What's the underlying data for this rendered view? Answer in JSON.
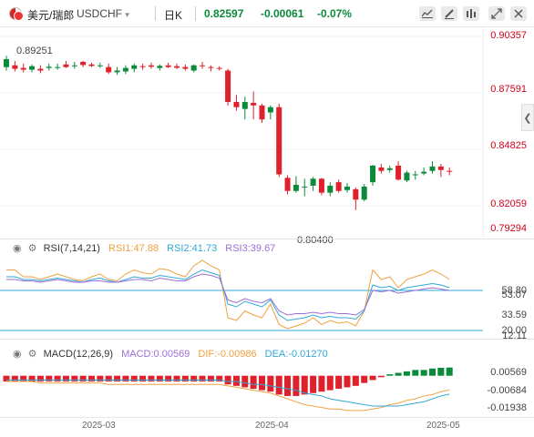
{
  "header": {
    "pair_name": "美元/瑞郎",
    "symbol": "USDCHF",
    "dropdown_arrow": "▾",
    "period": "日K",
    "price": "0.82597",
    "change": "-0.00061",
    "change_pct": "-0.07%",
    "icons": [
      "indicator-icon",
      "draw-icon",
      "settings-icon",
      "expand-icon",
      "close-icon"
    ]
  },
  "price_axis": [
    "0.90357",
    "0.87591",
    "0.84825",
    "0.82059",
    "0.79294"
  ],
  "high_label": "0.89251",
  "low_label": "0.80400",
  "rsi": {
    "title": "RSI(7,14,21)",
    "rsi1": "RSI1:47.88",
    "rsi2": "RSI2:41.73",
    "rsi3": "RSI3:39.67",
    "axis": [
      "58.80",
      "53.07",
      "33.59",
      "20.00",
      "12.11"
    ],
    "colors": {
      "rsi1": "#f0a040",
      "rsi2": "#30a8d8",
      "rsi3": "#9b6fd6",
      "band": "#30a8d8"
    }
  },
  "macd": {
    "title": "MACD(12,26,9)",
    "macd": "MACD:0.00569",
    "dif": "DIF:-0.00986",
    "dea": "DEA:-0.01270",
    "axis": [
      "0.00569",
      "-0.00684",
      "-0.01938"
    ],
    "colors": {
      "macd": "#9b6fd6",
      "dif": "#f0a040",
      "dea": "#30a8d8"
    }
  },
  "x_axis": [
    "2025-03",
    "2025-04",
    "2025-05"
  ],
  "colors": {
    "up": "#0b8a3a",
    "down": "#e0202a",
    "text_red": "#d0021b"
  },
  "chart_data": {
    "type": "candlestick",
    "candles": [
      [
        0.886,
        0.8925,
        0.884,
        0.8905
      ],
      [
        0.887,
        0.8895,
        0.8835,
        0.885
      ],
      [
        0.8855,
        0.888,
        0.883,
        0.8845
      ],
      [
        0.8845,
        0.8875,
        0.883,
        0.8865
      ],
      [
        0.885,
        0.887,
        0.8825,
        0.884
      ],
      [
        0.8855,
        0.888,
        0.884,
        0.8862
      ],
      [
        0.886,
        0.888,
        0.8845,
        0.886
      ],
      [
        0.8875,
        0.8895,
        0.8855,
        0.886
      ],
      [
        0.887,
        0.889,
        0.885,
        0.887
      ],
      [
        0.889,
        0.8895,
        0.886,
        0.8872
      ],
      [
        0.8875,
        0.8885,
        0.886,
        0.8866
      ],
      [
        0.887,
        0.8885,
        0.8855,
        0.887
      ],
      [
        0.886,
        0.888,
        0.882,
        0.883
      ],
      [
        0.883,
        0.886,
        0.8815,
        0.884
      ],
      [
        0.8835,
        0.887,
        0.882,
        0.8855
      ],
      [
        0.885,
        0.888,
        0.883,
        0.887
      ],
      [
        0.8865,
        0.888,
        0.8845,
        0.886
      ],
      [
        0.887,
        0.8885,
        0.885,
        0.8862
      ],
      [
        0.8855,
        0.8875,
        0.884,
        0.8867
      ],
      [
        0.887,
        0.8885,
        0.8855,
        0.886
      ],
      [
        0.8865,
        0.888,
        0.885,
        0.8856
      ],
      [
        0.886,
        0.8875,
        0.884,
        0.885
      ],
      [
        0.884,
        0.8875,
        0.883,
        0.887
      ],
      [
        0.887,
        0.889,
        0.885,
        0.8865
      ],
      [
        0.886,
        0.887,
        0.8835,
        0.8855
      ],
      [
        0.8855,
        0.8865,
        0.884,
        0.885
      ],
      [
        0.884,
        0.885,
        0.864,
        0.866
      ],
      [
        0.866,
        0.87,
        0.861,
        0.863
      ],
      [
        0.862,
        0.869,
        0.856,
        0.866
      ],
      [
        0.8655,
        0.872,
        0.856,
        0.864
      ],
      [
        0.864,
        0.865,
        0.854,
        0.856
      ],
      [
        0.86,
        0.864,
        0.856,
        0.863
      ],
      [
        0.863,
        0.865,
        0.823,
        0.8245
      ],
      [
        0.8225,
        0.824,
        0.813,
        0.815
      ],
      [
        0.815,
        0.8235,
        0.814,
        0.8185
      ],
      [
        0.817,
        0.822,
        0.812,
        0.8175
      ],
      [
        0.818,
        0.823,
        0.815,
        0.822
      ],
      [
        0.822,
        0.8225,
        0.8125,
        0.814
      ],
      [
        0.814,
        0.82,
        0.812,
        0.818
      ],
      [
        0.82,
        0.8215,
        0.814,
        0.815
      ],
      [
        0.8155,
        0.8195,
        0.814,
        0.8175
      ],
      [
        0.816,
        0.817,
        0.804,
        0.81
      ],
      [
        0.81,
        0.819,
        0.809,
        0.8175
      ],
      [
        0.82,
        0.83,
        0.818,
        0.8295
      ],
      [
        0.8285,
        0.8305,
        0.825,
        0.8265
      ],
      [
        0.827,
        0.8295,
        0.8255,
        0.828
      ],
      [
        0.8295,
        0.832,
        0.821,
        0.8215
      ],
      [
        0.821,
        0.8265,
        0.82,
        0.8255
      ],
      [
        0.824,
        0.8265,
        0.8215,
        0.8245
      ],
      [
        0.825,
        0.8285,
        0.824,
        0.826
      ],
      [
        0.8265,
        0.832,
        0.825,
        0.829
      ],
      [
        0.829,
        0.8305,
        0.823,
        0.827
      ],
      [
        0.8265,
        0.8285,
        0.824,
        0.826
      ]
    ],
    "price_range": [
      0.79294,
      0.90357
    ],
    "rsi_series": {
      "rsi1": [
        55,
        55,
        50,
        50,
        48,
        50,
        52,
        50,
        48,
        47,
        50,
        52,
        48,
        47,
        52,
        55,
        53,
        52,
        56,
        55,
        52,
        50,
        58,
        62,
        58,
        55,
        20,
        18,
        25,
        22,
        20,
        30,
        15,
        12,
        14,
        16,
        20,
        15,
        18,
        16,
        17,
        14,
        25,
        55,
        48,
        50,
        42,
        48,
        50,
        52,
        55,
        52,
        48
      ],
      "rsi2": [
        50,
        50,
        48,
        48,
        47,
        48,
        49,
        48,
        47,
        46,
        48,
        49,
        47,
        46,
        48,
        50,
        49,
        49,
        51,
        50,
        49,
        48,
        52,
        55,
        53,
        51,
        30,
        28,
        32,
        30,
        28,
        33,
        22,
        18,
        19,
        20,
        22,
        20,
        21,
        20,
        20,
        19,
        25,
        44,
        42,
        43,
        40,
        42,
        43,
        44,
        45,
        44,
        42
      ],
      "rsi3": [
        48,
        48,
        47,
        47,
        46,
        47,
        48,
        47,
        46,
        46,
        47,
        47,
        46,
        46,
        47,
        48,
        48,
        47,
        49,
        48,
        47,
        47,
        50,
        52,
        51,
        49,
        33,
        31,
        34,
        32,
        31,
        34,
        25,
        22,
        23,
        23,
        24,
        23,
        24,
        23,
        23,
        22,
        26,
        40,
        39,
        40,
        38,
        39,
        40,
        41,
        42,
        41,
        40
      ]
    },
    "rsi_range": [
      10,
      62
    ],
    "macd_series": {
      "hist": [
        -0.004,
        -0.004,
        -0.004,
        -0.004,
        -0.004,
        -0.004,
        -0.004,
        -0.004,
        -0.004,
        -0.004,
        -0.004,
        -0.004,
        -0.004,
        -0.004,
        -0.004,
        -0.004,
        -0.004,
        -0.004,
        -0.004,
        -0.004,
        -0.004,
        -0.004,
        -0.004,
        -0.004,
        -0.004,
        -0.004,
        -0.006,
        -0.007,
        -0.008,
        -0.009,
        -0.01,
        -0.011,
        -0.013,
        -0.014,
        -0.014,
        -0.013,
        -0.012,
        -0.011,
        -0.01,
        -0.009,
        -0.008,
        -0.007,
        -0.005,
        -0.003,
        -0.001,
        0.001,
        0.002,
        0.003,
        0.004,
        0.004,
        0.005,
        0.0055,
        0.00569
      ],
      "dif": [
        -0.004,
        -0.004,
        -0.004,
        -0.004,
        -0.005,
        -0.005,
        -0.005,
        -0.005,
        -0.005,
        -0.005,
        -0.005,
        -0.005,
        -0.006,
        -0.006,
        -0.006,
        -0.006,
        -0.006,
        -0.006,
        -0.006,
        -0.006,
        -0.006,
        -0.006,
        -0.006,
        -0.006,
        -0.006,
        -0.006,
        -0.007,
        -0.008,
        -0.009,
        -0.01,
        -0.011,
        -0.012,
        -0.014,
        -0.016,
        -0.018,
        -0.02,
        -0.021,
        -0.022,
        -0.023,
        -0.023,
        -0.024,
        -0.024,
        -0.024,
        -0.023,
        -0.022,
        -0.02,
        -0.019,
        -0.017,
        -0.016,
        -0.014,
        -0.013,
        -0.011,
        -0.00986
      ],
      "dea": [
        -0.003,
        -0.003,
        -0.003,
        -0.003,
        -0.003,
        -0.003,
        -0.003,
        -0.003,
        -0.003,
        -0.003,
        -0.003,
        -0.003,
        -0.003,
        -0.003,
        -0.003,
        -0.003,
        -0.003,
        -0.003,
        -0.003,
        -0.003,
        -0.003,
        -0.003,
        -0.003,
        -0.003,
        -0.003,
        -0.003,
        -0.004,
        -0.004,
        -0.005,
        -0.006,
        -0.006,
        -0.007,
        -0.008,
        -0.009,
        -0.01,
        -0.012,
        -0.013,
        -0.014,
        -0.016,
        -0.017,
        -0.018,
        -0.019,
        -0.02,
        -0.021,
        -0.021,
        -0.021,
        -0.021,
        -0.02,
        -0.019,
        -0.018,
        -0.016,
        -0.014,
        -0.0127
      ]
    },
    "macd_range": [
      -0.026,
      0.008
    ]
  }
}
